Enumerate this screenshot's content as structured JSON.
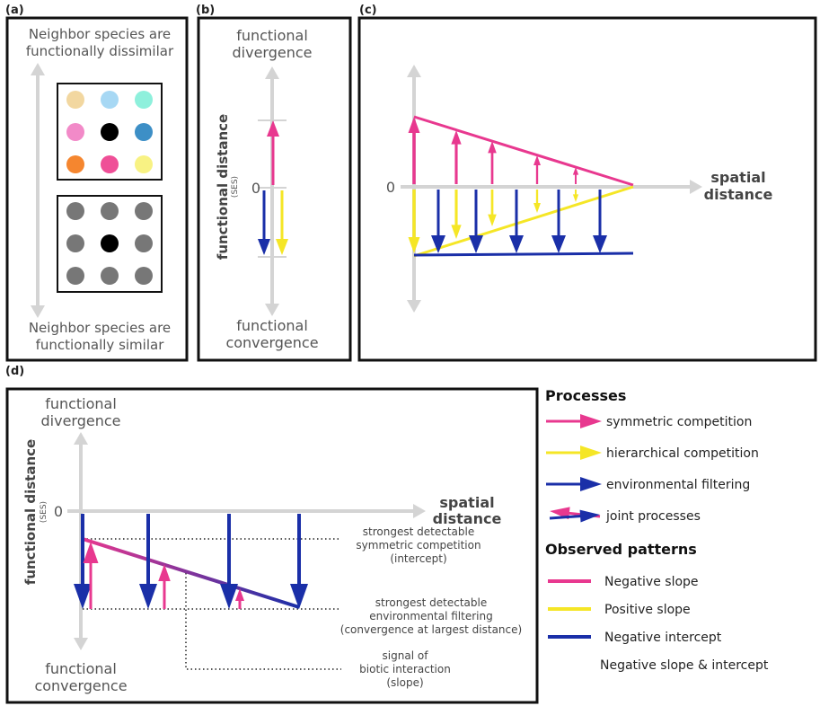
{
  "panels": {
    "a": {
      "label": "(a)",
      "top_text": [
        "Neighbor species are",
        "functionally dissimilar"
      ],
      "bottom_text": [
        "Neighbor species are",
        "functionally similar"
      ],
      "colors": {
        "dissimilar_grid": [
          "#f2d7a0",
          "#a7d8f4",
          "#8ef0dc",
          "#f28ac8",
          "#000000",
          "#3d8fc6",
          "#f5862f",
          "#ef4f97",
          "#f8f283"
        ],
        "similar_grid": [
          "#777777",
          "#777777",
          "#777777",
          "#777777",
          "#000000",
          "#777777",
          "#777777",
          "#777777",
          "#777777"
        ]
      }
    },
    "b": {
      "label": "(b)",
      "top_text": [
        "functional",
        "divergence"
      ],
      "bottom_text": [
        "functional",
        "convergence"
      ],
      "ylabel": "functional distance",
      "ylabel_sub": "(SES)",
      "zero": "0"
    },
    "c": {
      "label": "(c)",
      "zero": "0",
      "xlabel": [
        "spatial",
        "distance"
      ]
    },
    "d": {
      "label": "(d)",
      "top_text": [
        "functional",
        "divergence"
      ],
      "bottom_text": [
        "functional",
        "convergence"
      ],
      "ylabel": "functional distance",
      "ylabel_sub": "(SES)",
      "zero": "0",
      "xlabel": [
        "spatial",
        "distance"
      ],
      "annotations": {
        "intercept": [
          "strongest detectable",
          "symmetric competition",
          "(intercept)"
        ],
        "filtering": [
          "strongest detectable",
          "environmental filtering",
          "(convergence at largest distance)"
        ],
        "slope": [
          "signal of",
          "biotic interaction",
          "(slope)"
        ]
      }
    }
  },
  "legend": {
    "processes_title": "Processes",
    "processes": [
      {
        "label": "symmetric competition",
        "icon": "pink-arrow-icon",
        "color": "#e8388f"
      },
      {
        "label": "hierarchical competition",
        "icon": "yellow-arrow-icon",
        "color": "#f5e626"
      },
      {
        "label": "environmental filtering",
        "icon": "blue-arrow-icon",
        "color": "#1a2fa8"
      },
      {
        "label": "joint processes",
        "icon": "joint-arrows-icon",
        "color": "#e8388f"
      }
    ],
    "patterns_title": "Observed patterns",
    "patterns": [
      {
        "label": "Negative slope",
        "icon": "pink-line-icon",
        "color": "#e8388f"
      },
      {
        "label": "Positive slope",
        "icon": "yellow-line-icon",
        "color": "#f5e626"
      },
      {
        "label": "Negative intercept",
        "icon": "blue-line-icon",
        "color": "#1a2fa8"
      },
      {
        "label": "Negative slope & intercept",
        "icon": "gradient-line-icon",
        "color": "#7a3a9a"
      }
    ]
  },
  "colors": {
    "pink": "#e8388f",
    "yellow": "#f5e626",
    "blue": "#1a2fa8",
    "axis": "#d4d4d4"
  }
}
